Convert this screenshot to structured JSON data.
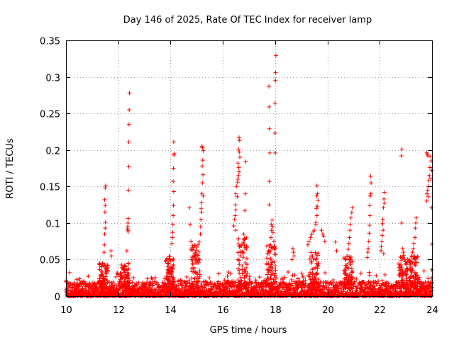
{
  "chart_data": {
    "type": "scatter",
    "title": "Day 146 of 2025, Rate Of TEC Index for receiver lamp",
    "xlabel": "GPS time / hours",
    "ylabel": "ROTI / TECUs",
    "xlim": [
      10,
      24
    ],
    "ylim": [
      0,
      0.35
    ],
    "xticks": [
      10,
      12,
      14,
      16,
      18,
      20,
      22,
      24
    ],
    "xtick_labels": [
      "10",
      "12",
      "14",
      "16",
      "18",
      "20",
      "22",
      "24"
    ],
    "yticks": [
      0,
      0.05,
      0.1,
      0.15,
      0.2,
      0.25,
      0.3,
      0.35
    ],
    "ytick_labels": [
      "0",
      "0.05",
      "0.1",
      "0.15",
      "0.2",
      "0.25",
      "0.3",
      "0.35"
    ],
    "grid": true,
    "marker": "+",
    "color": "#ff0000",
    "series": [
      {
        "name": "ROTI",
        "background_band": {
          "x_range": [
            10,
            24
          ],
          "y_typical": [
            0.0,
            0.02
          ]
        },
        "points": [
          [
            11.52,
            0.151
          ],
          [
            11.5,
            0.148
          ],
          [
            11.48,
            0.132
          ],
          [
            11.5,
            0.124
          ],
          [
            11.49,
            0.115
          ],
          [
            11.51,
            0.101
          ],
          [
            11.5,
            0.093
          ],
          [
            11.48,
            0.085
          ],
          [
            11.47,
            0.07
          ],
          [
            11.46,
            0.06
          ],
          [
            11.4,
            0.045
          ],
          [
            11.35,
            0.04
          ],
          [
            11.72,
            0.062
          ],
          [
            11.74,
            0.055
          ],
          [
            12.43,
            0.278
          ],
          [
            12.42,
            0.255
          ],
          [
            12.41,
            0.235
          ],
          [
            12.4,
            0.211
          ],
          [
            12.4,
            0.177
          ],
          [
            12.39,
            0.145
          ],
          [
            12.38,
            0.106
          ],
          [
            12.37,
            0.1
          ],
          [
            12.36,
            0.095
          ],
          [
            12.35,
            0.092
          ],
          [
            12.37,
            0.09
          ],
          [
            12.38,
            0.088
          ],
          [
            12.33,
            0.062
          ],
          [
            12.22,
            0.04
          ],
          [
            12.2,
            0.036
          ],
          [
            14.12,
            0.211
          ],
          [
            14.14,
            0.195
          ],
          [
            14.13,
            0.193
          ],
          [
            14.11,
            0.175
          ],
          [
            14.1,
            0.157
          ],
          [
            14.12,
            0.143
          ],
          [
            14.11,
            0.124
          ],
          [
            14.1,
            0.11
          ],
          [
            14.09,
            0.098
          ],
          [
            14.08,
            0.087
          ],
          [
            14.07,
            0.08
          ],
          [
            14.05,
            0.072
          ],
          [
            13.95,
            0.05
          ],
          [
            13.92,
            0.045
          ],
          [
            13.9,
            0.04
          ],
          [
            14.72,
            0.121
          ],
          [
            14.75,
            0.098
          ],
          [
            14.78,
            0.075
          ],
          [
            15.2,
            0.205
          ],
          [
            15.22,
            0.203
          ],
          [
            15.25,
            0.199
          ],
          [
            15.23,
            0.186
          ],
          [
            15.21,
            0.178
          ],
          [
            15.24,
            0.166
          ],
          [
            15.22,
            0.155
          ],
          [
            15.2,
            0.14
          ],
          [
            15.25,
            0.137
          ],
          [
            15.18,
            0.128
          ],
          [
            15.17,
            0.12
          ],
          [
            15.19,
            0.115
          ],
          [
            15.16,
            0.105
          ],
          [
            15.15,
            0.095
          ],
          [
            15.14,
            0.085
          ],
          [
            15.1,
            0.074
          ],
          [
            15.05,
            0.07
          ],
          [
            15.0,
            0.067
          ],
          [
            14.95,
            0.06
          ],
          [
            14.9,
            0.055
          ],
          [
            16.62,
            0.217
          ],
          [
            16.64,
            0.213
          ],
          [
            16.6,
            0.201
          ],
          [
            16.63,
            0.197
          ],
          [
            16.65,
            0.19
          ],
          [
            16.58,
            0.182
          ],
          [
            16.61,
            0.176
          ],
          [
            16.62,
            0.17
          ],
          [
            16.6,
            0.165
          ],
          [
            16.58,
            0.16
          ],
          [
            16.56,
            0.156
          ],
          [
            16.52,
            0.15
          ],
          [
            16.5,
            0.14
          ],
          [
            16.55,
            0.136
          ],
          [
            16.48,
            0.125
          ],
          [
            16.5,
            0.118
          ],
          [
            16.47,
            0.11
          ],
          [
            16.45,
            0.105
          ],
          [
            16.42,
            0.096
          ],
          [
            16.5,
            0.09
          ],
          [
            16.88,
            0.184
          ],
          [
            16.86,
            0.14
          ],
          [
            16.84,
            0.117
          ],
          [
            16.8,
            0.085
          ],
          [
            16.85,
            0.078
          ],
          [
            16.82,
            0.07
          ],
          [
            16.78,
            0.06
          ],
          [
            18.03,
            0.329
          ],
          [
            18.02,
            0.306
          ],
          [
            18.01,
            0.295
          ],
          [
            17.76,
            0.287
          ],
          [
            18.0,
            0.264
          ],
          [
            17.77,
            0.259
          ],
          [
            17.78,
            0.229
          ],
          [
            18.0,
            0.223
          ],
          [
            17.8,
            0.196
          ],
          [
            18.01,
            0.196
          ],
          [
            17.78,
            0.157
          ],
          [
            17.77,
            0.125
          ],
          [
            17.88,
            0.104
          ],
          [
            17.85,
            0.098
          ],
          [
            17.9,
            0.095
          ],
          [
            17.86,
            0.09
          ],
          [
            17.92,
            0.087
          ],
          [
            17.84,
            0.08
          ],
          [
            17.95,
            0.075
          ],
          [
            17.82,
            0.07
          ],
          [
            17.98,
            0.066
          ],
          [
            17.75,
            0.062
          ],
          [
            17.7,
            0.058
          ],
          [
            17.68,
            0.052
          ],
          [
            18.68,
            0.065
          ],
          [
            18.7,
            0.06
          ],
          [
            18.72,
            0.055
          ],
          [
            18.65,
            0.05
          ],
          [
            19.6,
            0.151
          ],
          [
            19.62,
            0.14
          ],
          [
            19.59,
            0.137
          ],
          [
            19.64,
            0.131
          ],
          [
            19.61,
            0.123
          ],
          [
            19.58,
            0.12
          ],
          [
            19.6,
            0.11
          ],
          [
            19.56,
            0.101
          ],
          [
            19.55,
            0.098
          ],
          [
            19.5,
            0.09
          ],
          [
            19.45,
            0.088
          ],
          [
            19.4,
            0.084
          ],
          [
            19.35,
            0.08
          ],
          [
            19.3,
            0.075
          ],
          [
            19.25,
            0.07
          ],
          [
            19.78,
            0.09
          ],
          [
            19.82,
            0.085
          ],
          [
            19.86,
            0.082
          ],
          [
            19.9,
            0.075
          ],
          [
            20.3,
            0.074
          ],
          [
            20.35,
            0.062
          ],
          [
            20.95,
            0.121
          ],
          [
            20.93,
            0.114
          ],
          [
            20.9,
            0.107
          ],
          [
            20.88,
            0.098
          ],
          [
            20.86,
            0.09
          ],
          [
            20.84,
            0.08
          ],
          [
            20.82,
            0.072
          ],
          [
            20.8,
            0.064
          ],
          [
            21.65,
            0.164
          ],
          [
            21.67,
            0.155
          ],
          [
            21.66,
            0.14
          ],
          [
            21.64,
            0.137
          ],
          [
            21.62,
            0.124
          ],
          [
            21.63,
            0.11
          ],
          [
            21.61,
            0.097
          ],
          [
            21.6,
            0.086
          ],
          [
            21.58,
            0.075
          ],
          [
            21.56,
            0.065
          ],
          [
            21.55,
            0.06
          ],
          [
            21.52,
            0.053
          ],
          [
            22.18,
            0.142
          ],
          [
            22.16,
            0.133
          ],
          [
            22.17,
            0.127
          ],
          [
            22.14,
            0.121
          ],
          [
            22.12,
            0.105
          ],
          [
            22.11,
            0.099
          ],
          [
            22.13,
            0.09
          ],
          [
            22.1,
            0.083
          ],
          [
            22.08,
            0.075
          ],
          [
            22.06,
            0.068
          ],
          [
            22.05,
            0.062
          ],
          [
            22.15,
            0.058
          ],
          [
            22.85,
            0.201
          ],
          [
            22.83,
            0.192
          ],
          [
            22.84,
            0.1
          ],
          [
            22.88,
            0.065
          ],
          [
            22.9,
            0.06
          ],
          [
            22.92,
            0.056
          ],
          [
            22.95,
            0.05
          ],
          [
            22.98,
            0.047
          ],
          [
            23.4,
            0.107
          ],
          [
            23.38,
            0.1
          ],
          [
            23.36,
            0.093
          ],
          [
            23.35,
            0.08
          ],
          [
            23.3,
            0.072
          ],
          [
            23.28,
            0.065
          ],
          [
            23.25,
            0.06
          ],
          [
            23.22,
            0.055
          ],
          [
            23.8,
            0.196
          ],
          [
            23.82,
            0.194
          ],
          [
            23.84,
            0.192
          ],
          [
            23.95,
            0.191
          ],
          [
            23.97,
            0.185
          ],
          [
            23.92,
            0.176
          ],
          [
            23.99,
            0.172
          ],
          [
            23.9,
            0.165
          ],
          [
            23.96,
            0.161
          ],
          [
            23.88,
            0.158
          ],
          [
            23.85,
            0.15
          ],
          [
            23.83,
            0.145
          ],
          [
            23.81,
            0.14
          ],
          [
            23.86,
            0.136
          ],
          [
            23.8,
            0.13
          ],
          [
            23.98,
            0.121
          ],
          [
            24.0,
            0.071
          ],
          [
            23.99,
            0.036
          ],
          [
            23.98,
            0.025
          ]
        ]
      }
    ]
  }
}
